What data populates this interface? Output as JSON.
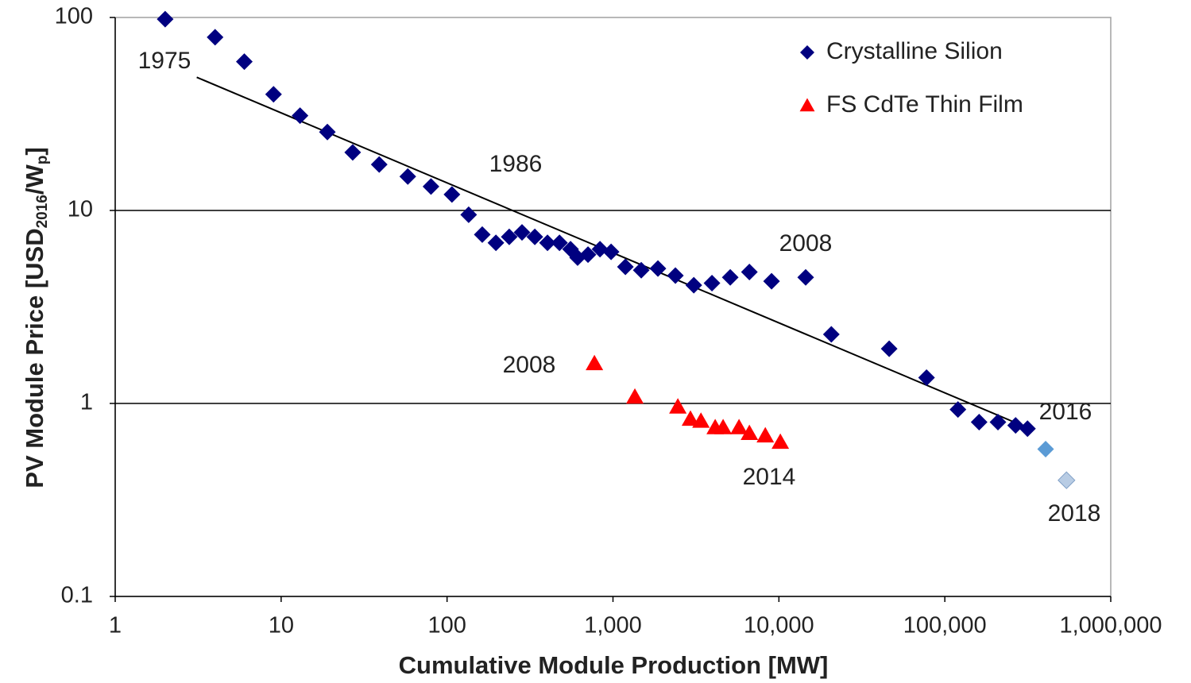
{
  "chart_data": {
    "type": "scatter",
    "x_label": "Cumulative Module Production [MW]",
    "y_label": [
      "PV Module Price [USD",
      "2016",
      "/W",
      "p",
      "]"
    ],
    "log_x": true,
    "log_y": true,
    "xlim": [
      1,
      1000000
    ],
    "ylim": [
      0.1,
      100
    ],
    "xticks": [
      1,
      10,
      100,
      {
        "value": 1000,
        "label": "1,000"
      },
      {
        "value": 10000,
        "label": "10,000"
      },
      {
        "value": 100000,
        "label": "100,000"
      },
      {
        "value": 1000000,
        "label": "1,000,000"
      }
    ],
    "yticks": [
      0.1,
      1,
      10,
      100
    ],
    "grid": true,
    "legend": "top-right",
    "series": [
      {
        "name": "Crystalline Silion",
        "color": "#000080",
        "marker": "diamond",
        "x": [
          2,
          4,
          6,
          9,
          13,
          19,
          27,
          39,
          58,
          80,
          107,
          135,
          163,
          197,
          237,
          283,
          338,
          403,
          476,
          555,
          612,
          707,
          835,
          974,
          1188,
          1480,
          1866,
          2378,
          3070,
          3950,
          5090,
          6640,
          9030,
          14500,
          20700,
          46200,
          77600,
          120000,
          161000,
          209000,
          267000,
          315000,
          405000,
          541000
        ],
        "values": [
          98,
          79,
          59,
          40,
          31,
          25.5,
          20,
          17.3,
          15,
          13.3,
          12.1,
          9.5,
          7.5,
          6.8,
          7.3,
          7.7,
          7.3,
          6.8,
          6.8,
          6.3,
          5.7,
          5.9,
          6.3,
          6.1,
          5.1,
          4.9,
          5.0,
          4.6,
          4.1,
          4.2,
          4.5,
          4.8,
          4.3,
          4.5,
          2.28,
          1.92,
          1.36,
          0.93,
          0.8,
          0.8,
          0.77,
          0.74,
          0.58,
          0.4
        ],
        "point_colors": [
          "#000080",
          "#000080",
          "#000080",
          "#000080",
          "#000080",
          "#000080",
          "#000080",
          "#000080",
          "#000080",
          "#000080",
          "#000080",
          "#000080",
          "#000080",
          "#000080",
          "#000080",
          "#000080",
          "#000080",
          "#000080",
          "#000080",
          "#000080",
          "#000080",
          "#000080",
          "#000080",
          "#000080",
          "#000080",
          "#000080",
          "#000080",
          "#000080",
          "#000080",
          "#000080",
          "#000080",
          "#000080",
          "#000080",
          "#000080",
          "#000080",
          "#000080",
          "#000080",
          "#000080",
          "#000080",
          "#000080",
          "#000080",
          "#000080",
          "#5b9bd5",
          "#b8cce4"
        ]
      },
      {
        "name": "FS CdTe Thin Film",
        "color": "#ff0000",
        "marker": "triangle",
        "x": [
          773,
          1355,
          2460,
          2930,
          3390,
          4130,
          4610,
          5750,
          6640,
          8280,
          10200
        ],
        "values": [
          1.61,
          1.08,
          0.96,
          0.83,
          0.81,
          0.75,
          0.75,
          0.75,
          0.7,
          0.68,
          0.63
        ]
      }
    ],
    "trendline": {
      "color": "#000000",
      "x": [
        3.1,
        325000
      ],
      "values": [
        49,
        0.74
      ]
    },
    "annotations": [
      "1975",
      "1986",
      "2008",
      "2008",
      "2014",
      "2016",
      "2018"
    ]
  }
}
